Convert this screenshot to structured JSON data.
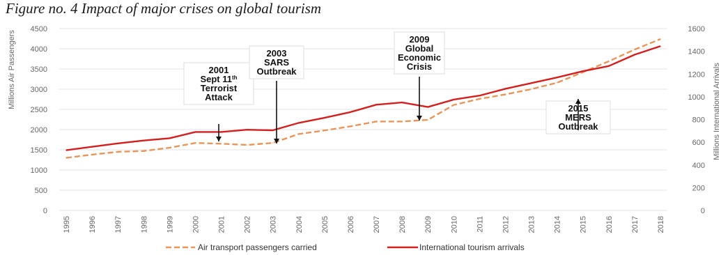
{
  "figure_title": "Figure no. 4 Impact of major crises on global tourism",
  "colors": {
    "air_passengers": "#e8955a",
    "tourism_arrivals": "#d41f1f",
    "gridline": "#e3e3e3",
    "tick_text": "#666666"
  },
  "chart_data": {
    "type": "line",
    "title": "Figure no. 4 Impact of major crises on global tourism",
    "x": [
      "1995",
      "1996",
      "1997",
      "1998",
      "1999",
      "2000",
      "2001",
      "2002",
      "2003",
      "2004",
      "2005",
      "2006",
      "2007",
      "2008",
      "2009",
      "2010",
      "2011",
      "2012",
      "2013",
      "2014",
      "2015",
      "2016",
      "2017",
      "2018"
    ],
    "y_left": {
      "label": "Millions Air Passengers",
      "range": [
        0,
        4500
      ],
      "ticks": [
        0,
        500,
        1000,
        1500,
        2000,
        2500,
        3000,
        3500,
        4000,
        4500
      ]
    },
    "y_right": {
      "label": "Millions International Arrivals",
      "range": [
        0,
        1600
      ],
      "ticks": [
        0,
        200,
        400,
        600,
        800,
        1000,
        1200,
        1400,
        1600
      ]
    },
    "grid": true,
    "legend_position": "bottom",
    "series": [
      {
        "name": "Air transport passengers carried",
        "axis": "left",
        "style": "dashed",
        "values": [
          1300,
          1380,
          1450,
          1470,
          1550,
          1670,
          1650,
          1620,
          1670,
          1890,
          1980,
          2080,
          2200,
          2200,
          2240,
          2610,
          2760,
          2870,
          3000,
          3160,
          3420,
          3690,
          3980,
          4240
        ]
      },
      {
        "name": "International tourism arrivals",
        "axis": "right",
        "style": "solid",
        "values": [
          530,
          560,
          590,
          615,
          635,
          690,
          690,
          710,
          705,
          770,
          815,
          865,
          930,
          950,
          910,
          975,
          1010,
          1070,
          1120,
          1170,
          1225,
          1270,
          1370,
          1445
        ]
      }
    ],
    "annotations": [
      {
        "lines": [
          "2001",
          "Sept 11th",
          "Terrorist",
          "Attack"
        ],
        "target": "2001"
      },
      {
        "lines": [
          "2003",
          "SARS",
          "Outbreak"
        ],
        "target": "2003"
      },
      {
        "lines": [
          "2009",
          "Global",
          "Economic",
          "Crisis"
        ],
        "target": "2009"
      },
      {
        "lines": [
          "2015",
          "MERS",
          "Outbreak"
        ],
        "target": "2015"
      }
    ]
  }
}
